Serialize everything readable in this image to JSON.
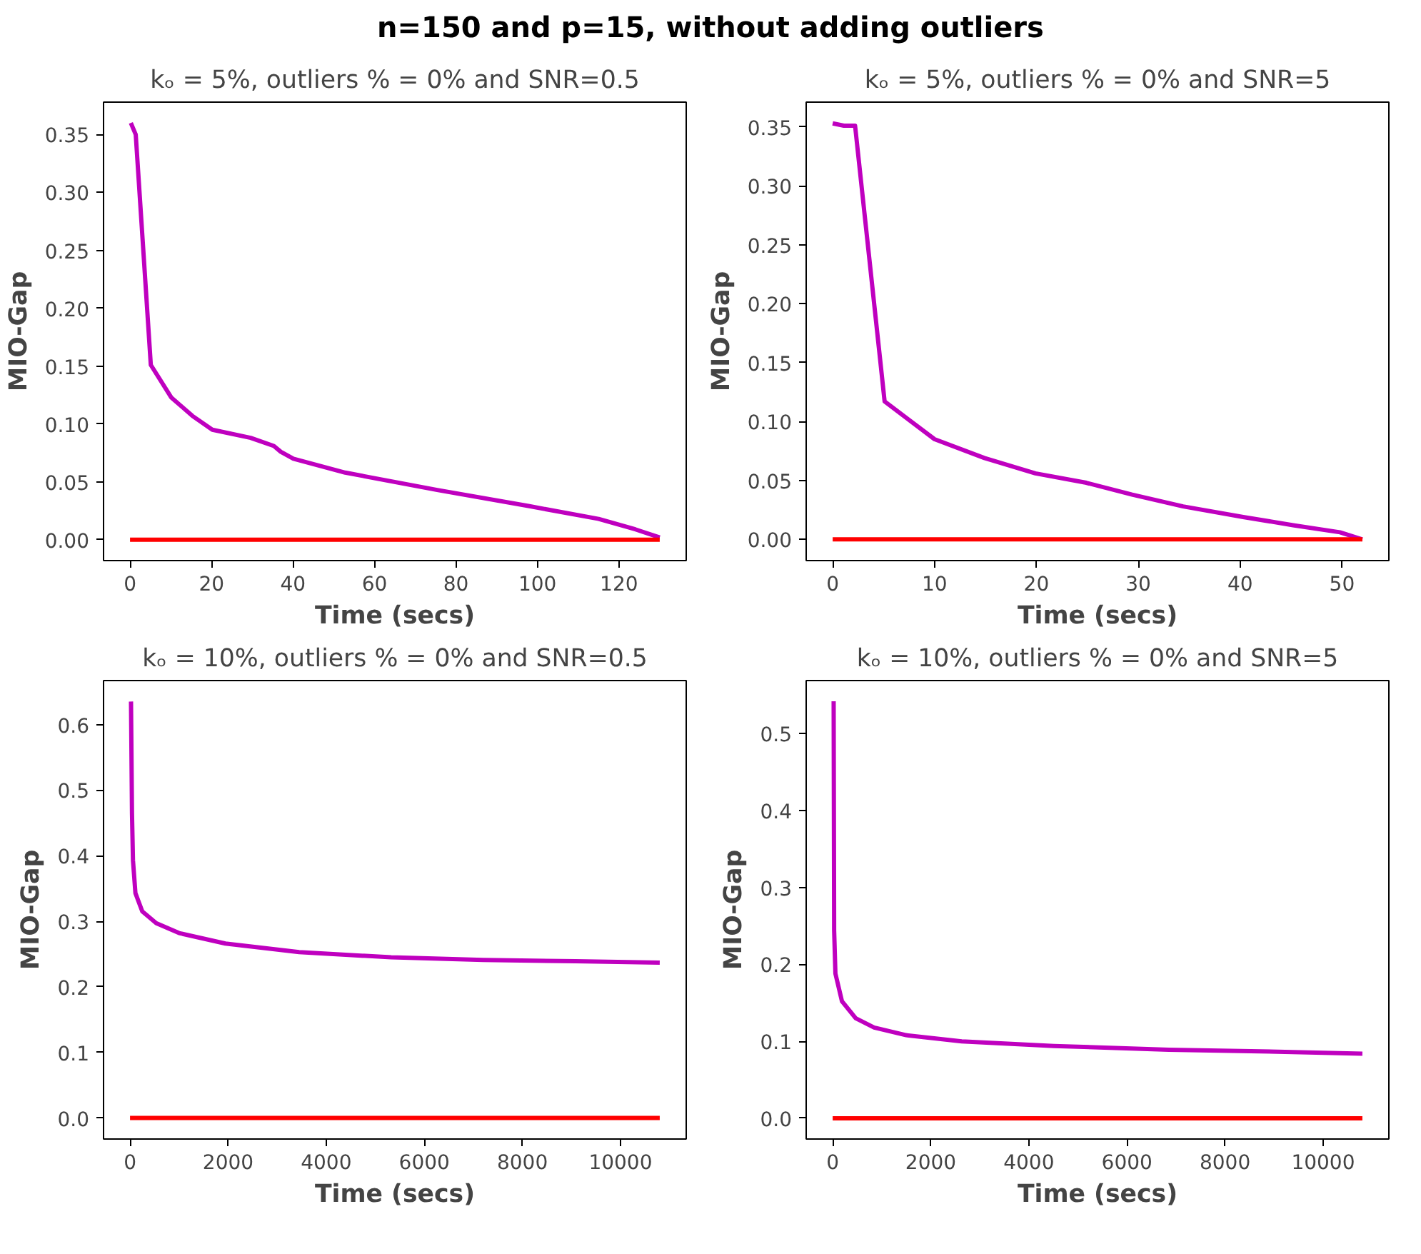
{
  "chart_data": [
    {
      "type": "line",
      "title": "kₒ = 5%, outliers % = 0% and SNR=0.5",
      "xlabel": "Time (secs)",
      "ylabel": "MIO-Gap",
      "annotations": [
        "n=150 and p=15, without adding outliers"
      ],
      "grid": false,
      "line_style": "solid",
      "xlim": [
        -6.5,
        136.5
      ],
      "xticks": [
        0,
        20,
        40,
        60,
        80,
        100,
        120
      ],
      "ylim": [
        -0.018,
        0.378
      ],
      "yticks": [
        {
          "value": 0,
          "label": "0.00"
        },
        {
          "value": 0.05,
          "label": "0.05"
        },
        {
          "value": 0.1,
          "label": "0.10"
        },
        {
          "value": 0.15,
          "label": "0.15"
        },
        {
          "value": 0.2,
          "label": "0.20"
        },
        {
          "value": 0.25,
          "label": "0.25"
        },
        {
          "value": 0.3,
          "label": "0.30"
        },
        {
          "value": 0.35,
          "label": "0.35"
        }
      ],
      "series": [
        {
          "color": "#bf00bf",
          "x": [
            0.2,
            1.4,
            5.1,
            10.1,
            15.3,
            20.2,
            29.6,
            35.3,
            37,
            40.1,
            52.8,
            75.4,
            98,
            115,
            124,
            130
          ],
          "values": [
            0.36,
            0.35,
            0.151,
            0.123,
            0.107,
            0.095,
            0.088,
            0.081,
            0.076,
            0.07,
            0.058,
            0.043,
            0.029,
            0.018,
            0.009,
            0.002
          ]
        },
        {
          "color": "#ff0000",
          "x": [
            0,
            130
          ],
          "values": [
            0,
            0
          ]
        }
      ]
    },
    {
      "type": "line",
      "title": "kₒ = 5%, outliers % = 0% and SNR=5",
      "xlabel": "Time (secs)",
      "ylabel": "MIO-Gap",
      "grid": false,
      "line_style": "solid",
      "xlim": [
        -2.6,
        54.6
      ],
      "xticks": [
        0,
        10,
        20,
        30,
        40,
        50
      ],
      "ylim": [
        -0.018,
        0.371
      ],
      "yticks": [
        {
          "value": 0,
          "label": "0.00"
        },
        {
          "value": 0.05,
          "label": "0.05"
        },
        {
          "value": 0.1,
          "label": "0.10"
        },
        {
          "value": 0.15,
          "label": "0.15"
        },
        {
          "value": 0.2,
          "label": "0.20"
        },
        {
          "value": 0.25,
          "label": "0.25"
        },
        {
          "value": 0.3,
          "label": "0.30"
        },
        {
          "value": 0.35,
          "label": "0.35"
        }
      ],
      "series": [
        {
          "color": "#bf00bf",
          "x": [
            0,
            1.1,
            2.2,
            5.1,
            10,
            14.9,
            19.9,
            24.9,
            29.4,
            34.4,
            40.3,
            45.2,
            49.8,
            52
          ],
          "values": [
            0.353,
            0.351,
            0.351,
            0.117,
            0.085,
            0.069,
            0.056,
            0.048,
            0.038,
            0.028,
            0.019,
            0.012,
            0.006,
            0.0
          ]
        },
        {
          "color": "#ff0000",
          "x": [
            0,
            52
          ],
          "values": [
            0,
            0
          ]
        }
      ]
    },
    {
      "type": "line",
      "title": "kₒ = 10%, outliers % = 0% and SNR=0.5",
      "xlabel": "Time (secs)",
      "ylabel": "MIO-Gap",
      "grid": false,
      "line_style": "solid",
      "xlim": [
        -540,
        11340
      ],
      "xticks": [
        0,
        2000,
        4000,
        6000,
        8000,
        10000
      ],
      "ylim": [
        -0.032,
        0.667
      ],
      "yticks": [
        {
          "value": 0,
          "label": "0.0"
        },
        {
          "value": 0.1,
          "label": "0.1"
        },
        {
          "value": 0.2,
          "label": "0.2"
        },
        {
          "value": 0.3,
          "label": "0.3"
        },
        {
          "value": 0.4,
          "label": "0.4"
        },
        {
          "value": 0.5,
          "label": "0.5"
        },
        {
          "value": 0.6,
          "label": "0.6"
        }
      ],
      "series": [
        {
          "color": "#bf00bf",
          "x": [
            20,
            40,
            60,
            110,
            250,
            535,
            1000,
            1944,
            3447,
            5325,
            7203,
            9081,
            10800
          ],
          "values": [
            0.635,
            0.465,
            0.393,
            0.343,
            0.315,
            0.297,
            0.282,
            0.266,
            0.253,
            0.245,
            0.241,
            0.239,
            0.237
          ]
        },
        {
          "color": "#ff0000",
          "x": [
            0,
            10800
          ],
          "values": [
            0,
            0
          ]
        }
      ]
    },
    {
      "type": "line",
      "title": "kₒ = 10%, outliers % = 0% and SNR=5",
      "xlabel": "Time (secs)",
      "ylabel": "MIO-Gap",
      "grid": false,
      "line_style": "solid",
      "xlim": [
        -540,
        11340
      ],
      "xticks": [
        0,
        2000,
        4000,
        6000,
        8000,
        10000
      ],
      "ylim": [
        -0.027,
        0.569
      ],
      "yticks": [
        {
          "value": 0,
          "label": "0.0"
        },
        {
          "value": 0.1,
          "label": "0.1"
        },
        {
          "value": 0.2,
          "label": "0.2"
        },
        {
          "value": 0.3,
          "label": "0.3"
        },
        {
          "value": 0.4,
          "label": "0.4"
        },
        {
          "value": 0.5,
          "label": "0.5"
        }
      ],
      "series": [
        {
          "color": "#bf00bf",
          "x": [
            20,
            30,
            56,
            190,
            470,
            845,
            1500,
            2630,
            4510,
            6856,
            8734,
            10800
          ],
          "values": [
            0.542,
            0.244,
            0.188,
            0.152,
            0.13,
            0.118,
            0.108,
            0.1,
            0.094,
            0.089,
            0.087,
            0.084
          ]
        },
        {
          "color": "#ff0000",
          "x": [
            0,
            10800
          ],
          "values": [
            0,
            0
          ]
        }
      ]
    }
  ]
}
